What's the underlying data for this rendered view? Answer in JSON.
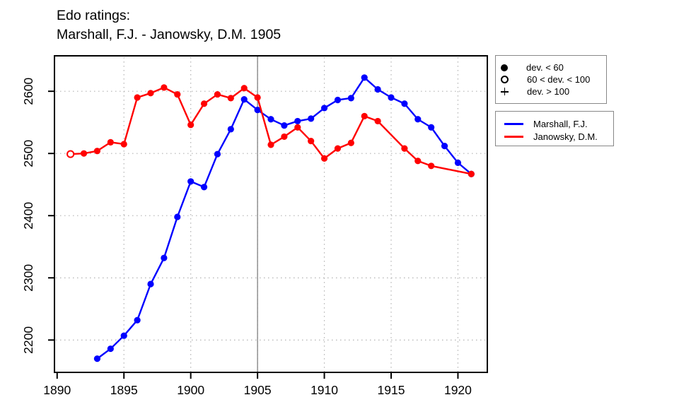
{
  "title": {
    "line1": "Edo ratings:",
    "line2": "Marshall, F.J. - Janowsky, D.M. 1905"
  },
  "colors": {
    "axis": "#000000",
    "grid": "#b3b3b3",
    "event_line": "#7f7f7f",
    "legend_border": "#888888",
    "background": "#ffffff"
  },
  "marker_legend": {
    "items": [
      {
        "symbol": "filled-circle",
        "label": "dev. < 60"
      },
      {
        "symbol": "open-circle",
        "label": "60 < dev. < 100"
      },
      {
        "symbol": "plus",
        "label": "dev. > 100"
      }
    ]
  },
  "chart_data": {
    "type": "line",
    "title": "Edo ratings: Marshall, F.J. - Janowsky, D.M. 1905",
    "xlabel": "",
    "ylabel": "",
    "xlim": [
      1889.8,
      1922.2
    ],
    "ylim": [
      2148,
      2657
    ],
    "x_ticks": [
      1890,
      1895,
      1900,
      1905,
      1910,
      1915,
      1920
    ],
    "y_ticks": [
      2200,
      2300,
      2400,
      2500,
      2600
    ],
    "x_grid": [
      1895,
      1900,
      1905,
      1910,
      1915,
      1920
    ],
    "grid": true,
    "legend_position": "right-outside",
    "event_line_x": 1905,
    "series": [
      {
        "name": "Marshall, F.J.",
        "color": "#0000ff",
        "x": [
          1893,
          1894,
          1895,
          1896,
          1897,
          1898,
          1899,
          1900,
          1901,
          1902,
          1903,
          1904,
          1905,
          1906,
          1907,
          1908,
          1909,
          1910,
          1911,
          1912,
          1913,
          1914,
          1915,
          1916,
          1917,
          1918,
          1919,
          1920,
          1921
        ],
        "y": [
          2170,
          2186,
          2207,
          2232,
          2290,
          2332,
          2398,
          2455,
          2446,
          2499,
          2539,
          2587,
          2570,
          2555,
          2545,
          2552,
          2556,
          2573,
          2586,
          2589,
          2622,
          2603,
          2590,
          2580,
          2555,
          2542,
          2512,
          2485,
          2467
        ],
        "open_markers": []
      },
      {
        "name": "Janowsky, D.M.",
        "color": "#ff0000",
        "x": [
          1891,
          1892,
          1893,
          1894,
          1895,
          1896,
          1897,
          1898,
          1899,
          1900,
          1901,
          1902,
          1903,
          1904,
          1905,
          1906,
          1907,
          1908,
          1909,
          1910,
          1911,
          1912,
          1913,
          1914,
          1916,
          1917,
          1918,
          1921
        ],
        "y": [
          2499,
          2500,
          2504,
          2518,
          2515,
          2590,
          2597,
          2606,
          2595,
          2546,
          2580,
          2595,
          2589,
          2605,
          2590,
          2514,
          2527,
          2542,
          2520,
          2492,
          2508,
          2517,
          2560,
          2552,
          2508,
          2488,
          2480,
          2467
        ],
        "open_markers": [
          1891
        ]
      }
    ]
  }
}
